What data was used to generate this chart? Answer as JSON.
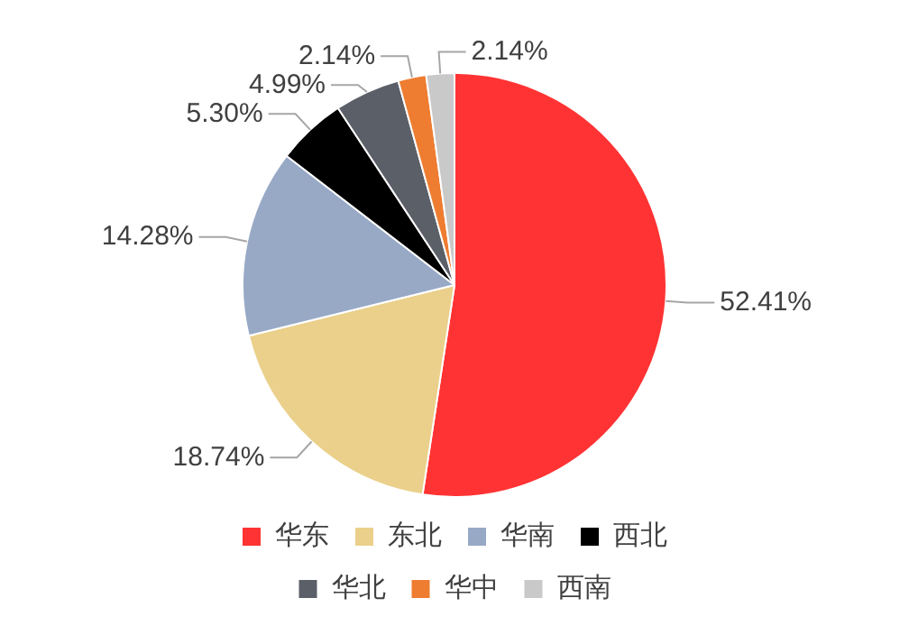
{
  "chart_data": {
    "type": "pie",
    "categories": [
      "华东",
      "东北",
      "华南",
      "西北",
      "华北",
      "华中",
      "西南"
    ],
    "values": [
      52.41,
      18.74,
      14.28,
      5.3,
      4.99,
      2.14,
      2.14
    ],
    "colors": [
      "#ff3333",
      "#ead08b",
      "#98a9c6",
      "#000000",
      "#5b5f67",
      "#ee7d31",
      "#c9c9c9"
    ],
    "value_labels": [
      "52.41%",
      "18.74%",
      "14.28%",
      "5.30%",
      "4.99%",
      "2.14%",
      "2.14%"
    ],
    "legend": "bottom"
  }
}
